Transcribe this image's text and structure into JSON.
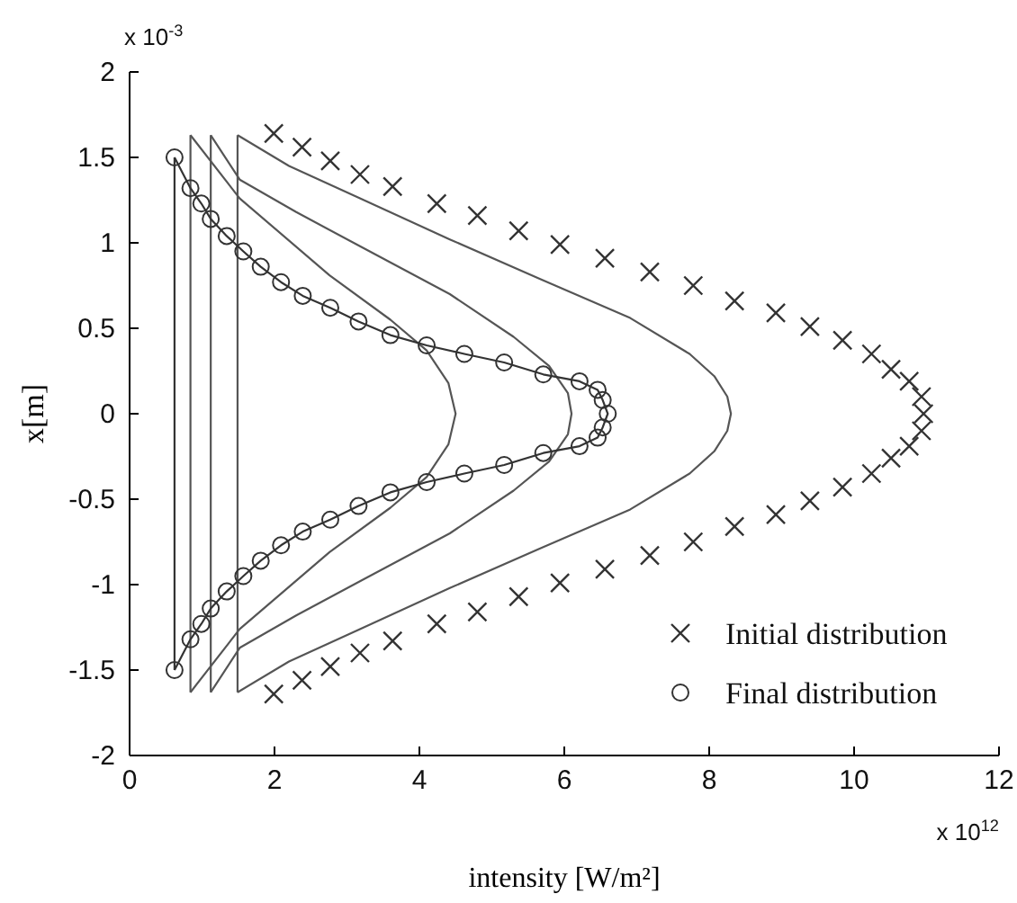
{
  "chart_data": {
    "type": "line",
    "xlabel": "intensity [W/m²]",
    "ylabel": "x[m]",
    "xlim": [
      0,
      12
    ],
    "xticks": [
      0,
      2,
      4,
      6,
      8,
      10,
      12
    ],
    "ylim": [
      -2,
      2
    ],
    "yticks": [
      -2,
      -1.5,
      -1,
      -0.5,
      0,
      0.5,
      1,
      1.5,
      2
    ],
    "grid": false,
    "legend": "bottom right",
    "tick_labels": "xy",
    "line_style": "solid",
    "annotations": [
      "x 10$^{-3}$",
      "x 10$^{12}$"
    ],
    "series": [
      {
        "color": "#555555",
        "marker": "none",
        "x": [
          1.49,
          2.2,
          3.18,
          4.42,
          5.66,
          6.91,
          7.73,
          8.07,
          8.25,
          8.3,
          8.25,
          8.07,
          7.73,
          6.91,
          5.66,
          4.42,
          3.18,
          2.2,
          1.49
        ],
        "values": [
          1.63,
          1.45,
          1.26,
          1.02,
          0.79,
          0.56,
          0.35,
          0.22,
          0.1,
          0,
          -0.1,
          -0.22,
          -0.35,
          -0.56,
          -0.79,
          -1.02,
          -1.26,
          -1.45,
          -1.63
        ]
      },
      {
        "color": "#555555",
        "marker": "none",
        "x": [
          1.49,
          1.49
        ],
        "values": [
          -1.63,
          1.63
        ]
      },
      {
        "color": "#555555",
        "marker": "none",
        "x": [
          1.12,
          1.52,
          2.3,
          3.18,
          4.42,
          5.3,
          5.79,
          6.05,
          6.1,
          6.05,
          5.79,
          5.3,
          4.42,
          3.18,
          2.3,
          1.52,
          1.12
        ],
        "values": [
          1.63,
          1.37,
          1.18,
          0.98,
          0.7,
          0.45,
          0.28,
          0.12,
          0,
          -0.12,
          -0.28,
          -0.45,
          -0.7,
          -0.98,
          -1.18,
          -1.37,
          -1.63
        ]
      },
      {
        "color": "#555555",
        "marker": "none",
        "x": [
          1.12,
          1.12
        ],
        "values": [
          -1.63,
          1.63
        ]
      },
      {
        "color": "#555555",
        "marker": "none",
        "x": [
          0.84,
          1.52,
          2.76,
          3.6,
          4.1,
          4.4,
          4.5,
          4.4,
          4.1,
          3.6,
          2.76,
          1.52,
          0.84
        ],
        "values": [
          1.63,
          1.26,
          0.81,
          0.55,
          0.37,
          0.18,
          0,
          -0.18,
          -0.37,
          -0.55,
          -0.81,
          -1.26,
          -1.63
        ]
      },
      {
        "color": "#555555",
        "marker": "none",
        "x": [
          0.84,
          0.84
        ],
        "values": [
          -1.63,
          1.63
        ]
      },
      {
        "name": "Initial distribution",
        "type": "scatter",
        "color": "#333333",
        "marker": "cross",
        "x": [
          1.99,
          2.38,
          2.77,
          3.18,
          3.63,
          4.24,
          4.8,
          5.37,
          5.94,
          6.56,
          7.18,
          7.78,
          8.35,
          8.92,
          9.39,
          9.84,
          10.24,
          10.51,
          10.76,
          10.93,
          10.96,
          10.93,
          10.76,
          10.51,
          10.24,
          9.84,
          9.39,
          8.92,
          8.35,
          7.78,
          7.18,
          6.56,
          5.94,
          5.37,
          4.8,
          4.24,
          3.63,
          3.18,
          2.77,
          2.38,
          1.99
        ],
        "values": [
          1.64,
          1.56,
          1.48,
          1.4,
          1.33,
          1.23,
          1.16,
          1.07,
          0.99,
          0.91,
          0.83,
          0.75,
          0.66,
          0.59,
          0.51,
          0.43,
          0.35,
          0.26,
          0.19,
          0.1,
          0,
          -0.1,
          -0.19,
          -0.26,
          -0.35,
          -0.43,
          -0.51,
          -0.59,
          -0.66,
          -0.75,
          -0.83,
          -0.91,
          -0.99,
          -1.07,
          -1.16,
          -1.23,
          -1.33,
          -1.4,
          -1.48,
          -1.56,
          -1.64
        ]
      },
      {
        "name": "Final distribution",
        "color": "#333333",
        "marker": "circle",
        "x": [
          0.62,
          0.84,
          0.99,
          1.12,
          1.34,
          1.57,
          1.81,
          2.09,
          2.39,
          2.77,
          3.16,
          3.6,
          4.1,
          4.62,
          5.17,
          5.71,
          6.21,
          6.46,
          6.53,
          6.6,
          6.53,
          6.46,
          6.21,
          5.71,
          5.17,
          4.62,
          4.1,
          3.6,
          3.16,
          2.77,
          2.39,
          2.09,
          1.81,
          1.57,
          1.34,
          1.12,
          0.99,
          0.84,
          0.62
        ],
        "values": [
          1.5,
          1.32,
          1.23,
          1.14,
          1.04,
          0.95,
          0.86,
          0.77,
          0.69,
          0.62,
          0.54,
          0.46,
          0.4,
          0.35,
          0.3,
          0.23,
          0.19,
          0.14,
          0.08,
          0,
          -0.08,
          -0.14,
          -0.19,
          -0.23,
          -0.3,
          -0.35,
          -0.4,
          -0.46,
          -0.54,
          -0.62,
          -0.69,
          -0.77,
          -0.86,
          -0.95,
          -1.04,
          -1.14,
          -1.23,
          -1.32,
          -1.5
        ]
      },
      {
        "color": "#333333",
        "marker": "none",
        "x": [
          0.62,
          0.62
        ],
        "values": [
          -1.5,
          1.5
        ]
      }
    ]
  }
}
